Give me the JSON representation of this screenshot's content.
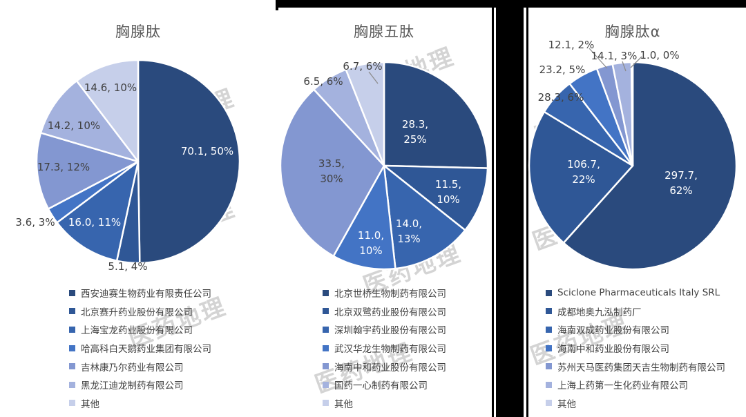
{
  "watermark": {
    "text": "医药地理"
  },
  "palette": [
    "#2A4A7D",
    "#2F5796",
    "#3765AE",
    "#4374C5",
    "#8397D1",
    "#A4B2DE",
    "#C6CFEA"
  ],
  "label_colors": {
    "light": "#FFFFFF",
    "dark": "#404040"
  },
  "chart_data": [
    {
      "type": "pie",
      "title": "胸腺肽",
      "legend_position": "bottom",
      "labels": [
        "西安迪赛生物药业有限责任公司",
        "北京赛升药业股份有限公司",
        "上海宝龙药业股份有限公司",
        "哈高科白天鹅药业集团有限公司",
        "吉林康乃尔药业有限公司",
        "黑龙江迪龙制药有限公司",
        "其他"
      ],
      "values": [
        70.1,
        5.1,
        16.0,
        3.6,
        17.3,
        14.2,
        14.6
      ],
      "percents": [
        "50%",
        "4%",
        "11%",
        "3%",
        "12%",
        "10%",
        "10%"
      ],
      "data_labels": [
        "70.1, 50%",
        "5.1, 4%",
        "16.0, 11%",
        "3.6, 3%",
        "17.3, 12%",
        "14.2, 10%",
        "14.6, 10%"
      ]
    },
    {
      "type": "pie",
      "title": "胸腺五肽",
      "legend_position": "bottom",
      "labels": [
        "北京世桥生物制药有限公司",
        "北京双鹭药业股份有限公司",
        "深圳翰宇药业股份有限公司",
        "武汉华龙生物制药有限公司",
        "海南中和药业股份有限公司",
        "国药一心制药有限公司",
        "其他"
      ],
      "values": [
        28.3,
        11.5,
        14.0,
        11.0,
        33.5,
        6.5,
        6.7
      ],
      "percents": [
        "25%",
        "10%",
        "13%",
        "10%",
        "30%",
        "6%",
        "6%"
      ],
      "data_labels": [
        "28.3, 25%",
        "11.5, 10%",
        "14.0, 13%",
        "11.0, 10%",
        "33.5, 30%",
        "6.5, 6%",
        "6.7, 6%"
      ]
    },
    {
      "type": "pie",
      "title": "胸腺肽α",
      "legend_position": "bottom",
      "labels": [
        "Sciclone Pharmaceuticals Italy SRL",
        "成都地奥九泓制药厂",
        "海南双成药业股份有限公司",
        "海南中和药业股份有限公司",
        "苏州天马医药集团天吉生物制药有限公司",
        "上海上药第一生化药业有限公司",
        "其他"
      ],
      "values": [
        297.7,
        106.7,
        28.3,
        23.2,
        12.1,
        14.1,
        1.0
      ],
      "percents": [
        "62%",
        "22%",
        "6%",
        "5%",
        "2%",
        "3%",
        "0%"
      ],
      "data_labels": [
        "297.7, 62%",
        "106.7, 22%",
        "28.3, 6%",
        "23.2, 5%",
        "12.1, 2%",
        "14.1, 3%",
        "1.0, 0%"
      ]
    }
  ]
}
